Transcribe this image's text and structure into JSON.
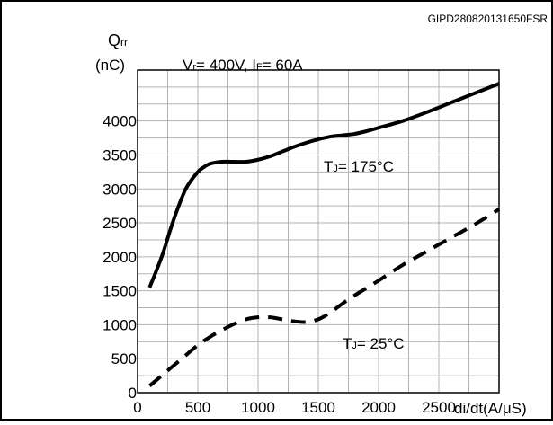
{
  "figure_code": "GIPD280820131650FSR",
  "chart_data": {
    "type": "line",
    "title": "",
    "xlabel": "di/dt(A/μS)",
    "ylabel": {
      "main": "Q",
      "sub": "rr",
      "unit": "(nC)"
    },
    "conditions": {
      "vr_prefix": "V",
      "vr_sub": "r",
      "vr_value": "= 400V, ",
      "if_prefix": "I",
      "if_sub": "F",
      "if_value": "= 60A"
    },
    "xlim": [
      0,
      3000
    ],
    "ylim": [
      0,
      4750
    ],
    "x_ticks": [
      0,
      500,
      1000,
      1500,
      2000,
      2500
    ],
    "x_tick_labels": [
      "0",
      "500",
      "1000",
      "1500",
      "2000",
      "2500"
    ],
    "y_ticks": [
      0,
      500,
      1000,
      1500,
      2000,
      2500,
      3000,
      3500,
      4000
    ],
    "y_tick_labels": [
      "0",
      "500",
      "1000",
      "1500",
      "2000",
      "2500",
      "3000",
      "3500",
      "4000"
    ],
    "grid": true,
    "series": [
      {
        "label_prefix": "T",
        "label_sub": "J",
        "label_value": "= 175°C",
        "style": "solid",
        "x": [
          100,
          200,
          300,
          400,
          500,
          550,
          600,
          700,
          800,
          900,
          1000,
          1100,
          1200,
          1300,
          1400,
          1500,
          1600,
          1700,
          1800,
          1900,
          2000,
          2200,
          2400,
          2600,
          2800,
          3000
        ],
        "y": [
          1550,
          2000,
          2550,
          3000,
          3250,
          3320,
          3370,
          3400,
          3400,
          3400,
          3430,
          3480,
          3550,
          3620,
          3680,
          3730,
          3770,
          3790,
          3810,
          3850,
          3900,
          4000,
          4130,
          4270,
          4410,
          4550
        ]
      },
      {
        "label_prefix": "T",
        "label_sub": "J",
        "label_value": "= 25°C",
        "style": "dashed",
        "x": [
          100,
          200,
          300,
          400,
          500,
          600,
          700,
          800,
          900,
          1000,
          1100,
          1200,
          1300,
          1400,
          1500,
          1600,
          1700,
          1800,
          2000,
          2200,
          2400,
          2600,
          2800,
          3000
        ],
        "y": [
          100,
          250,
          400,
          550,
          700,
          820,
          920,
          1010,
          1080,
          1110,
          1110,
          1080,
          1050,
          1040,
          1080,
          1180,
          1310,
          1430,
          1650,
          1880,
          2080,
          2280,
          2480,
          2700
        ]
      }
    ],
    "colors": {
      "line": "#000000",
      "grid": "#b3b3b3",
      "frame": "#000000",
      "background": "#ffffff"
    }
  }
}
